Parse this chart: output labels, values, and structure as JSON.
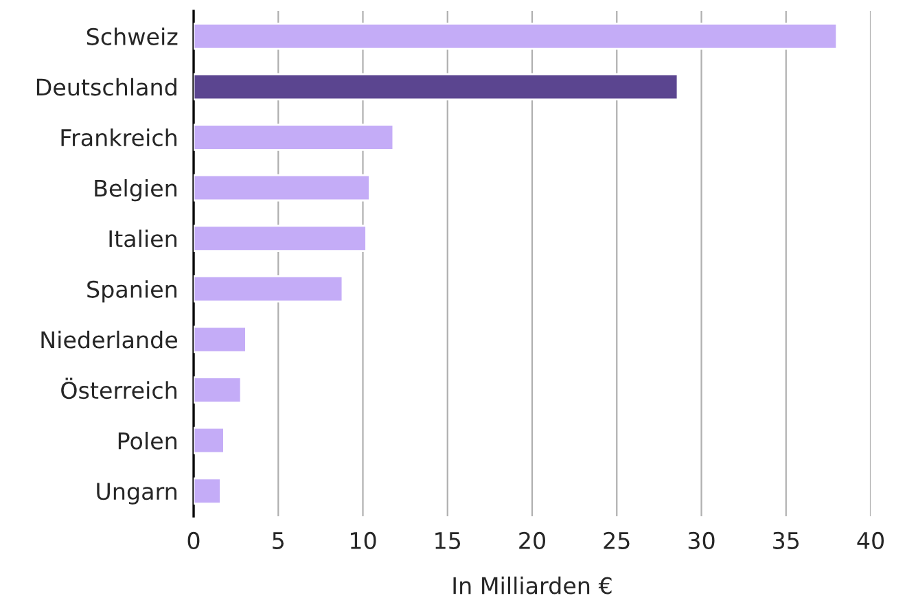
{
  "chart_data": {
    "type": "bar",
    "orientation": "horizontal",
    "xlabel": "In Milliarden €",
    "categories": [
      "Schweiz",
      "Deutschland",
      "Frankreich",
      "Belgien",
      "Italien",
      "Spanien",
      "Niederlande",
      "Österreich",
      "Polen",
      "Ungarn"
    ],
    "values": [
      38,
      28.6,
      11.8,
      10.4,
      10.2,
      8.8,
      3.1,
      2.8,
      1.8,
      1.6
    ],
    "colors": [
      "#c4acf7",
      "#5b4590",
      "#c4acf7",
      "#c4acf7",
      "#c4acf7",
      "#c4acf7",
      "#c4acf7",
      "#c4acf7",
      "#c4acf7",
      "#c4acf7"
    ],
    "xlim": [
      0,
      40
    ],
    "xticks": [
      0,
      5,
      10,
      15,
      20,
      25,
      30,
      35,
      40
    ],
    "grid": "x",
    "legend": false
  }
}
